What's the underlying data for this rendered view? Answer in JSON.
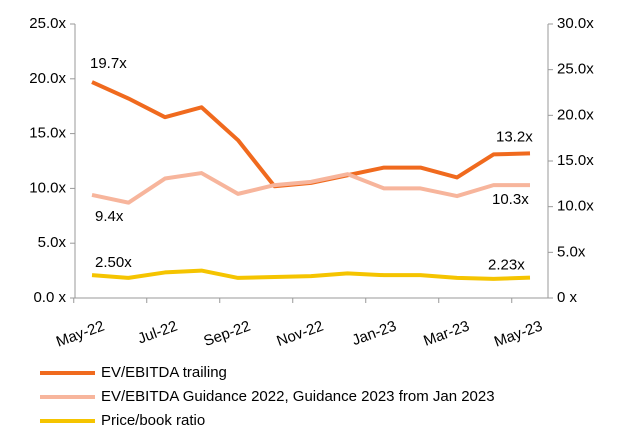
{
  "chart_data": {
    "type": "line",
    "categories": [
      "May-22",
      null,
      "Jul-22",
      null,
      "Sep-22",
      null,
      "Nov-22",
      null,
      "Jan-23",
      null,
      "Mar-23",
      null,
      "May-23"
    ],
    "series": [
      {
        "name": "EV/EBITDA trailing",
        "color": "#f06a1e",
        "axis": "y",
        "values": [
          19.7,
          18.2,
          16.5,
          17.4,
          14.4,
          10.2,
          10.5,
          11.2,
          11.9,
          11.9,
          11.0,
          13.1,
          13.2
        ],
        "value_labels": [
          "19.7x",
          null,
          null,
          null,
          null,
          null,
          null,
          null,
          null,
          null,
          null,
          null,
          "13.2x"
        ]
      },
      {
        "name": "EV/EBITDA Guidance 2022, Guidance 2023 from Jan 2023",
        "color": "#f7b59c",
        "axis": "y",
        "values": [
          9.4,
          8.7,
          10.9,
          11.4,
          9.5,
          10.3,
          10.6,
          11.3,
          10.0,
          10.0,
          9.3,
          10.3,
          10.3
        ],
        "value_labels": [
          "9.4x",
          null,
          null,
          null,
          null,
          null,
          null,
          null,
          null,
          null,
          null,
          null,
          "10.3x"
        ]
      },
      {
        "name": "Price/book ratio",
        "color": "#f5c400",
        "axis": "y2",
        "values": [
          2.5,
          2.2,
          2.8,
          3.0,
          2.2,
          2.3,
          2.4,
          2.7,
          2.5,
          2.5,
          2.2,
          2.1,
          2.23
        ],
        "value_labels": [
          "2.50x",
          null,
          null,
          null,
          null,
          null,
          null,
          null,
          null,
          null,
          null,
          null,
          "2.23x"
        ]
      }
    ],
    "ylim": [
      0,
      25
    ],
    "yticks": [
      {
        "value": 0,
        "label": "0.0 x"
      },
      {
        "value": 5,
        "label": "5.0x"
      },
      {
        "value": 10,
        "label": "10.0x"
      },
      {
        "value": 15,
        "label": "15.0x"
      },
      {
        "value": 20,
        "label": "20.0x"
      },
      {
        "value": 25,
        "label": "25.0x"
      }
    ],
    "y2lim": [
      0,
      30
    ],
    "y2ticks": [
      {
        "value": 0,
        "label": "0 x"
      },
      {
        "value": 5,
        "label": "5.0x"
      },
      {
        "value": 10,
        "label": "10.0x"
      },
      {
        "value": 15,
        "label": "15.0x"
      },
      {
        "value": 20,
        "label": "20.0x"
      },
      {
        "value": 25,
        "label": "25.0x"
      },
      {
        "value": 30,
        "label": "30.0x"
      }
    ]
  }
}
